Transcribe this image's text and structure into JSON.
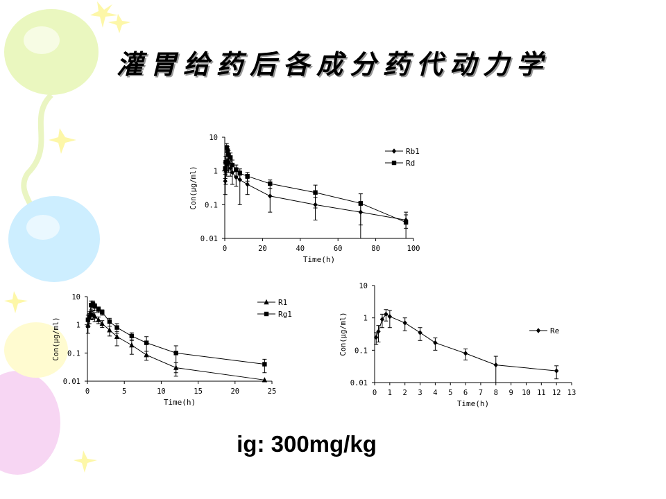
{
  "page": {
    "title": "灌胃给药后各成分药代动力学",
    "caption": "ig: 300mg/kg"
  },
  "chart_data": [
    {
      "type": "line",
      "xlabel": "Time(h)",
      "ylabel": "Con(μg/ml)",
      "yscale": "log",
      "xlim": [
        0,
        100
      ],
      "ylim": [
        0.01,
        10
      ],
      "xticks": [
        "0",
        "20",
        "40",
        "60",
        "80",
        "100"
      ],
      "yticks": [
        "0.01",
        "0.1",
        "1",
        "10"
      ],
      "legend": "right",
      "series": [
        {
          "name": "Rb1",
          "marker": "diamond",
          "x": [
            0.25,
            0.5,
            1,
            1.5,
            2,
            3,
            4,
            6,
            8,
            12,
            24,
            48,
            72,
            96
          ],
          "y": [
            0.5,
            1.0,
            1.5,
            2.0,
            1.8,
            1.2,
            0.9,
            0.65,
            0.55,
            0.4,
            0.18,
            0.1,
            0.06,
            0.035
          ],
          "err": [
            0.3,
            0.6,
            0.8,
            1.0,
            0.9,
            0.5,
            0.5,
            0.3,
            0.45,
            0.2,
            0.12,
            0.065,
            0.035,
            0.015
          ]
        },
        {
          "name": "Rd",
          "marker": "square",
          "x": [
            0.25,
            0.5,
            1,
            1.5,
            2,
            3,
            4,
            6,
            8,
            12,
            24,
            48,
            72,
            96
          ],
          "y": [
            1.2,
            1.8,
            5.0,
            4.0,
            3.0,
            2.5,
            1.5,
            1.1,
            0.85,
            0.7,
            0.42,
            0.23,
            0.11,
            0.03
          ],
          "err": [
            0.6,
            0.9,
            1.5,
            1.2,
            1.0,
            0.9,
            0.6,
            0.4,
            0.3,
            0.2,
            0.12,
            0.15,
            0.1,
            0.03
          ]
        }
      ]
    },
    {
      "type": "line",
      "xlabel": "Time(h)",
      "ylabel": "Con(μg/ml)",
      "yscale": "log",
      "xlim": [
        0,
        25
      ],
      "ylim": [
        0.01,
        10
      ],
      "xticks": [
        "0",
        "5",
        "10",
        "15",
        "20",
        "25"
      ],
      "yticks": [
        "0.01",
        "0.1",
        "1",
        "10"
      ],
      "legend": "right",
      "series": [
        {
          "name": "R1",
          "marker": "triangle",
          "x": [
            0.08,
            0.25,
            0.5,
            0.75,
            1,
            1.5,
            2,
            3,
            4,
            6,
            8,
            12,
            24
          ],
          "y": [
            1.0,
            1.8,
            2.5,
            2.3,
            2.0,
            1.5,
            1.1,
            0.65,
            0.38,
            0.19,
            0.085,
            0.03,
            0.011
          ],
          "err": [
            0.5,
            0.7,
            0.9,
            0.8,
            0.7,
            0.4,
            0.3,
            0.25,
            0.2,
            0.1,
            0.03,
            0.015,
            0.0
          ]
        },
        {
          "name": "Rg1",
          "marker": "square",
          "x": [
            0.08,
            0.25,
            0.5,
            0.75,
            1,
            1.5,
            2,
            3,
            4,
            6,
            8,
            12,
            24
          ],
          "y": [
            1.5,
            2.0,
            5.0,
            5.5,
            4.5,
            3.5,
            2.8,
            1.3,
            0.8,
            0.4,
            0.23,
            0.1,
            0.04
          ],
          "err": [
            0.7,
            0.9,
            2.0,
            1.5,
            1.2,
            0.8,
            0.6,
            0.4,
            0.3,
            0.12,
            0.15,
            0.08,
            0.02
          ]
        }
      ]
    },
    {
      "type": "line",
      "xlabel": "Time(h)",
      "ylabel": "Con(μg/ml)",
      "yscale": "log",
      "xlim": [
        0,
        13
      ],
      "ylim": [
        0.01,
        10
      ],
      "xticks": [
        "0",
        "1",
        "2",
        "3",
        "4",
        "5",
        "6",
        "7",
        "8",
        "9",
        "10",
        "11",
        "12",
        "13"
      ],
      "yticks": [
        "0.01",
        "0.1",
        "1",
        "10"
      ],
      "legend": "right",
      "series": [
        {
          "name": "Re",
          "marker": "diamond",
          "x": [
            0.1,
            0.25,
            0.5,
            0.75,
            1,
            2,
            3,
            4,
            6,
            8,
            12
          ],
          "y": [
            0.25,
            0.38,
            0.9,
            1.3,
            1.1,
            0.7,
            0.35,
            0.17,
            0.08,
            0.035,
            0.023
          ],
          "err": [
            0.1,
            0.2,
            0.4,
            0.5,
            0.6,
            0.3,
            0.15,
            0.07,
            0.03,
            0.03,
            0.01
          ]
        }
      ]
    }
  ],
  "decor": {
    "balloon_colors": [
      "#e8f5b8",
      "#c9ecff",
      "#f6d2f2",
      "#fffbcc"
    ]
  }
}
